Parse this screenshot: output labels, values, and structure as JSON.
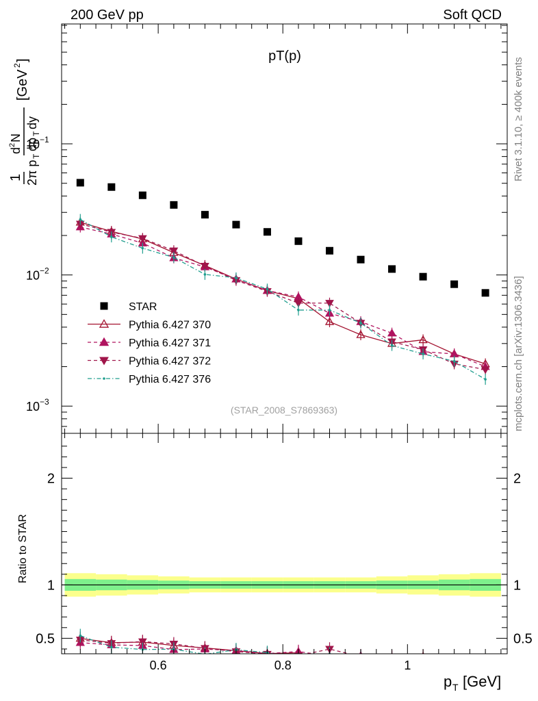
{
  "header": {
    "left": "200 GeV pp",
    "right": "Soft QCD"
  },
  "side_texts": {
    "rivet": "Rivet 3.1.10, ≥ 400k events",
    "mcplots": "mcplots.cern.ch [arXiv:1306.3436]"
  },
  "chart_data": {
    "type": "scatter",
    "title": "pT(p)",
    "analysis_label": "(STAR_2008_S7869363)",
    "xlabel": "p_T [GeV]",
    "ylabel": "1/(2π p_T) d²N/(dp_T dy) [GeV²]",
    "ratio_ylabel": "Ratio to STAR",
    "yscale": "log",
    "xlim": [
      0.445,
      1.16
    ],
    "ylim": [
      0.00062,
      0.82
    ],
    "ratio_ylim": [
      0.355,
      2.42
    ],
    "x_ticks": [
      {
        "value": 0.6,
        "label": "0.6"
      },
      {
        "value": 0.8,
        "label": "0.8"
      },
      {
        "value": 1.0,
        "label": "1"
      }
    ],
    "y_ticks": [
      {
        "value": 0.001,
        "base": "10",
        "exp": "−3"
      },
      {
        "value": 0.01,
        "base": "10",
        "exp": "−2"
      },
      {
        "value": 0.1,
        "base": "10",
        "exp": "−1"
      }
    ],
    "ratio_ticks": [
      {
        "value": 0.5,
        "label": "0.5"
      },
      {
        "value": 1,
        "label": "1"
      },
      {
        "value": 2,
        "label": "2"
      }
    ],
    "x": [
      0.475,
      0.525,
      0.575,
      0.625,
      0.675,
      0.725,
      0.775,
      0.825,
      0.875,
      0.925,
      0.975,
      1.025,
      1.075,
      1.125
    ],
    "legend_position": "middle-left",
    "series": [
      {
        "name": "STAR",
        "marker": "square",
        "color": "#000000",
        "values": [
          0.0505,
          0.0468,
          0.0405,
          0.0342,
          0.0288,
          0.0242,
          0.0213,
          0.0181,
          0.0153,
          0.0131,
          0.0111,
          0.0097,
          0.0085,
          0.0073
        ]
      },
      {
        "name": "Pythia 6.427 370",
        "marker": "triangle-up-open",
        "line": "solid",
        "color": "#a3122f",
        "values": [
          0.0252,
          0.0215,
          0.0188,
          0.0148,
          0.0118,
          0.0093,
          0.0076,
          0.0066,
          0.0044,
          0.0035,
          0.003,
          0.0032,
          0.0025,
          0.0021
        ]
      },
      {
        "name": "Pythia 6.427 371",
        "marker": "triangle-up-filled",
        "line": "dashed",
        "color": "#b0135f",
        "values": [
          0.0232,
          0.0205,
          0.0175,
          0.0135,
          0.0115,
          0.0093,
          0.0076,
          0.0068,
          0.0051,
          0.0044,
          0.0036,
          0.0026,
          0.0025,
          0.002
        ]
      },
      {
        "name": "Pythia 6.427 372",
        "marker": "triangle-down-filled",
        "line": "dashed",
        "color": "#a0154a",
        "values": [
          0.0245,
          0.0212,
          0.019,
          0.0153,
          0.0117,
          0.0091,
          0.0075,
          0.0061,
          0.0061,
          0.0043,
          0.0031,
          0.0027,
          0.0021,
          0.0019
        ]
      },
      {
        "name": "Pythia 6.427 376",
        "marker": "dot",
        "line": "dashdot",
        "color": "#1f9e8e",
        "values": [
          0.0265,
          0.0195,
          0.016,
          0.0136,
          0.0101,
          0.0095,
          0.0078,
          0.0054,
          0.0054,
          0.0043,
          0.0029,
          0.0025,
          0.0022,
          0.0016
        ]
      }
    ],
    "ratio_band": {
      "inner_color": "#7ef08c",
      "outer_color": "#fbff8c",
      "inner_halfwidth": [
        0.055,
        0.05,
        0.045,
        0.04,
        0.035,
        0.035,
        0.035,
        0.035,
        0.035,
        0.035,
        0.04,
        0.04,
        0.05,
        0.055
      ],
      "outer_halfwidth": [
        0.11,
        0.1,
        0.09,
        0.08,
        0.07,
        0.07,
        0.07,
        0.07,
        0.07,
        0.07,
        0.08,
        0.09,
        0.1,
        0.11
      ]
    }
  }
}
